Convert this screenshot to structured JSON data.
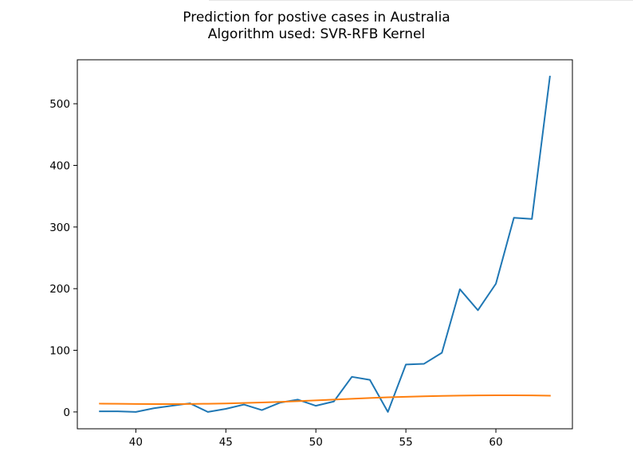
{
  "chart_data": {
    "type": "line",
    "title": "Prediction for postive cases in Australia",
    "subtitle": "Algorithm used: SVR-RFB Kernel",
    "xlabel": "",
    "ylabel": "",
    "xlim": [
      36.75,
      64.25
    ],
    "ylim": [
      -27.3,
      571.3
    ],
    "xticks": [
      40,
      45,
      50,
      55,
      60
    ],
    "yticks": [
      0,
      100,
      200,
      300,
      400,
      500
    ],
    "grid": false,
    "series": [
      {
        "color": "#1f77b4",
        "x": [
          38,
          39,
          40,
          41,
          42,
          43,
          44,
          45,
          46,
          47,
          48,
          49,
          50,
          51,
          52,
          53,
          54,
          55,
          56,
          57,
          58,
          59,
          60,
          61,
          62,
          63
        ],
        "y": [
          1,
          1,
          0,
          6,
          10,
          14,
          0,
          5,
          12,
          3,
          15,
          20,
          10,
          17,
          57,
          52,
          0,
          77,
          78,
          96,
          199,
          165,
          208,
          315,
          313,
          544
        ]
      },
      {
        "color": "#ff7f0e",
        "x": [
          38,
          39,
          40,
          41,
          42,
          43,
          44,
          45,
          46,
          47,
          48,
          49,
          50,
          51,
          52,
          53,
          54,
          55,
          56,
          57,
          58,
          59,
          60,
          61,
          62,
          63
        ],
        "y": [
          13.5,
          13.2,
          12.9,
          12.8,
          12.8,
          13.0,
          13.3,
          13.8,
          14.5,
          15.3,
          16.3,
          17.5,
          18.8,
          20.1,
          21.4,
          22.6,
          23.7,
          24.6,
          25.4,
          26.0,
          26.5,
          26.8,
          27.0,
          27.0,
          26.8,
          26.4
        ]
      }
    ]
  }
}
